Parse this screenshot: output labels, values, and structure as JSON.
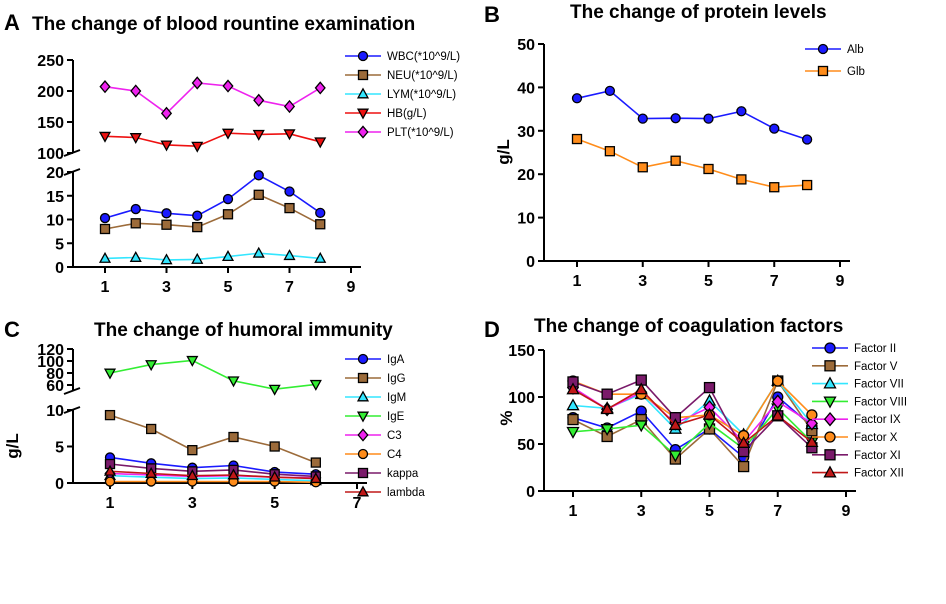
{
  "chart_data": [
    {
      "panel": "A",
      "type": "line",
      "title": "The change of blood rountine examination",
      "xlabel": "",
      "ylabel": "",
      "x": [
        1,
        2,
        3,
        4,
        5,
        6,
        7,
        8
      ],
      "xticks": [
        1,
        3,
        5,
        7,
        9
      ],
      "ysegments": [
        {
          "range": [
            0,
            20
          ],
          "ticks": [
            0,
            5,
            10,
            15,
            20
          ]
        },
        {
          "range": [
            100,
            250
          ],
          "ticks": [
            100,
            150,
            200,
            250
          ]
        }
      ],
      "series": [
        {
          "name": "WBC(*10^9/L)",
          "color": "#1a1aff",
          "marker": "circle",
          "values": [
            10.3,
            12.2,
            11.3,
            10.8,
            14.3,
            19.3,
            15.9,
            11.4
          ]
        },
        {
          "name": "NEU(*10^9/L)",
          "color": "#9c6b3a",
          "marker": "square",
          "values": [
            8.0,
            9.2,
            8.9,
            8.4,
            11.1,
            15.2,
            12.4,
            9.0
          ]
        },
        {
          "name": "LYM(*10^9/L)",
          "color": "#33e6ff",
          "marker": "triangle-up",
          "values": [
            1.8,
            2.0,
            1.5,
            1.6,
            2.2,
            2.9,
            2.4,
            1.8
          ]
        },
        {
          "name": "HB(g/L)",
          "color": "#ee1111",
          "marker": "triangle-down",
          "values": [
            127,
            125,
            113,
            111,
            132,
            130,
            131,
            118
          ]
        },
        {
          "name": "PLT(*10^9/L)",
          "color": "#ee22ee",
          "marker": "diamond",
          "values": [
            207,
            200,
            164,
            213,
            208,
            185,
            175,
            205
          ]
        }
      ]
    },
    {
      "panel": "B",
      "type": "line",
      "title": "The change of protein levels",
      "xlabel": "",
      "ylabel": "g/L",
      "x": [
        1,
        2,
        3,
        4,
        5,
        6,
        7,
        8
      ],
      "xticks": [
        1,
        3,
        5,
        7,
        9
      ],
      "ylim": [
        0,
        50
      ],
      "yticks": [
        0,
        10,
        20,
        30,
        40,
        50
      ],
      "series": [
        {
          "name": "Alb",
          "color": "#1a1aff",
          "marker": "circle",
          "values": [
            37.5,
            39.2,
            32.8,
            32.9,
            32.8,
            34.5,
            30.5,
            28.0
          ]
        },
        {
          "name": "Glb",
          "color": "#ff8c1a",
          "marker": "square",
          "values": [
            28.1,
            25.3,
            21.6,
            23.1,
            21.2,
            18.8,
            17.0,
            17.5
          ]
        }
      ]
    },
    {
      "panel": "C",
      "type": "line",
      "title": "The change of humoral immunity",
      "xlabel": "",
      "ylabel": "g/L",
      "x": [
        1,
        2,
        3,
        4,
        5,
        6
      ],
      "xticks": [
        1,
        3,
        5,
        7
      ],
      "ysegments": [
        {
          "range": [
            0,
            10
          ],
          "ticks": [
            0,
            5,
            10
          ]
        },
        {
          "range": [
            50,
            120
          ],
          "ticks": [
            60,
            80,
            100,
            120
          ]
        }
      ],
      "series": [
        {
          "name": "IgA",
          "color": "#1a1aff",
          "marker": "circle",
          "values": [
            3.5,
            2.7,
            2.1,
            2.4,
            1.5,
            1.2
          ]
        },
        {
          "name": "IgG",
          "color": "#9c6b3a",
          "marker": "square",
          "values": [
            9.3,
            7.4,
            4.5,
            6.3,
            5.0,
            2.8
          ]
        },
        {
          "name": "IgM",
          "color": "#33e6ff",
          "marker": "triangle-up",
          "values": [
            1.0,
            0.8,
            0.6,
            0.7,
            0.5,
            0.3
          ]
        },
        {
          "name": "IgE",
          "color": "#33ee33",
          "marker": "triangle-down",
          "values": [
            80,
            94,
            101,
            67,
            53,
            61
          ]
        },
        {
          "name": "C3",
          "color": "#ee22ee",
          "marker": "diamond",
          "values": [
            1.3,
            1.1,
            0.9,
            1.0,
            0.8,
            0.7
          ]
        },
        {
          "name": "C4",
          "color": "#ff8c1a",
          "marker": "circle",
          "values": [
            0.2,
            0.2,
            0.2,
            0.2,
            0.2,
            0.1
          ]
        },
        {
          "name": "kappa",
          "color": "#7a1a6a",
          "marker": "square",
          "values": [
            2.6,
            2.0,
            1.6,
            1.8,
            1.2,
            0.9
          ]
        },
        {
          "name": "lambda",
          "color": "#c01818",
          "marker": "triangle-up",
          "values": [
            1.6,
            1.3,
            1.0,
            1.1,
            0.8,
            0.6
          ]
        }
      ]
    },
    {
      "panel": "D",
      "type": "line",
      "title": "The change of coagulation factors",
      "xlabel": "",
      "ylabel": "%",
      "x": [
        1,
        2,
        3,
        4,
        5,
        6,
        7,
        8
      ],
      "xticks": [
        1,
        3,
        5,
        7,
        9
      ],
      "ylim": [
        0,
        150
      ],
      "yticks": [
        0,
        50,
        100,
        150
      ],
      "series": [
        {
          "name": "Factor II",
          "color": "#1a1aff",
          "marker": "circle",
          "values": [
            78,
            67,
            85,
            44,
            66,
            36,
            100,
            69
          ]
        },
        {
          "name": "Factor V",
          "color": "#9c6b3a",
          "marker": "square",
          "values": [
            76,
            58,
            76,
            34,
            66,
            26,
            117,
            64
          ]
        },
        {
          "name": "Factor VII",
          "color": "#33e6ff",
          "marker": "triangle-up",
          "values": [
            91,
            88,
            103,
            66,
            96,
            60,
            117,
            71
          ]
        },
        {
          "name": "Factor VIII",
          "color": "#33ee33",
          "marker": "triangle-down",
          "values": [
            63,
            66,
            70,
            38,
            72,
            45,
            88,
            52
          ]
        },
        {
          "name": "Factor  IX",
          "color": "#ee22ee",
          "marker": "diamond",
          "values": [
            110,
            87,
            105,
            72,
            89,
            52,
            95,
            72
          ]
        },
        {
          "name": "Factor  X",
          "color": "#ff8c1a",
          "marker": "circle",
          "values": [
            117,
            103,
            103,
            78,
            81,
            59,
            117,
            81
          ]
        },
        {
          "name": "Factor  XI",
          "color": "#7a1a6a",
          "marker": "square",
          "values": [
            116,
            103,
            118,
            78,
            110,
            42,
            80,
            46
          ]
        },
        {
          "name": "Factor  XII",
          "color": "#c01818",
          "marker": "triangle-up",
          "values": [
            108,
            87,
            108,
            70,
            81,
            51,
            80,
            52
          ]
        }
      ]
    }
  ]
}
